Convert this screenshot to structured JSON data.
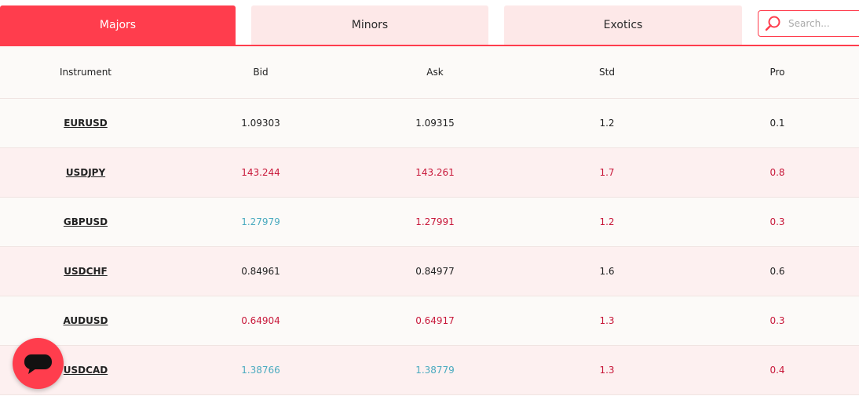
{
  "tabs": [
    "Majors",
    "Minors",
    "Exotics"
  ],
  "search_placeholder": "Search...",
  "table": {
    "headers": [
      "Instrument",
      "Bid",
      "Ask",
      "Std",
      "Pro"
    ],
    "rows": [
      [
        "EURUSD",
        "1.09303",
        "1.09315",
        "1.2",
        "0.1"
      ],
      [
        "USDJPY",
        "143.244",
        "143.261",
        "1.7",
        "0.8"
      ],
      [
        "GBPUSD",
        "1.27979",
        "1.27991",
        "1.2",
        "0.3"
      ],
      [
        "USDCHF",
        "0.84961",
        "0.84977",
        "1.6",
        "0.6"
      ],
      [
        "AUDUSD",
        "0.64904",
        "0.64917",
        "1.3",
        "0.3"
      ],
      [
        "USDCAD",
        "1.38766",
        "1.38779",
        "1.3",
        "0.4"
      ]
    ]
  }
}
